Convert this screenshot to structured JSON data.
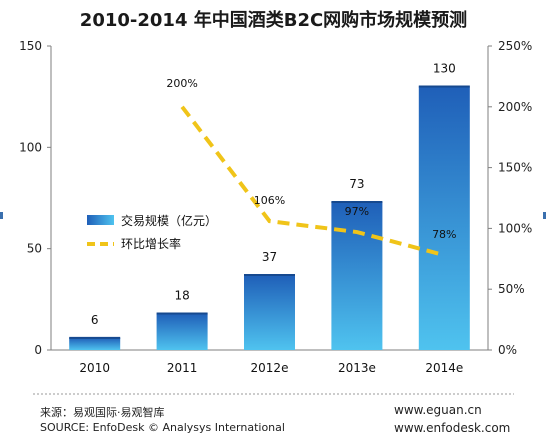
{
  "chart_data": {
    "type": "bar",
    "title": "2010-2014 年中国酒类B2C网购市场规模预测",
    "categories": [
      "2010",
      "2011",
      "2012e",
      "2013e",
      "2014e"
    ],
    "series": [
      {
        "name": "交易规模（亿元）",
        "type": "bar",
        "axis": "left",
        "values": [
          6,
          18,
          37,
          73,
          130
        ]
      },
      {
        "name": "环比增长率",
        "type": "line",
        "axis": "right",
        "values": [
          null,
          200,
          106,
          97,
          78
        ]
      }
    ],
    "value_labels": [
      "6",
      "18",
      "37",
      "73",
      "130"
    ],
    "rate_labels": [
      "",
      "200%",
      "106%",
      "97%",
      "78%"
    ],
    "ylim_left": [
      0,
      150
    ],
    "yticks_left": [
      "0",
      "50",
      "100",
      "150"
    ],
    "ylim_right": [
      0,
      250
    ],
    "yticks_right": [
      "0%",
      "50%",
      "100%",
      "150%",
      "200%",
      "250%"
    ],
    "grid": false,
    "legend_position": "center-left",
    "colors": {
      "bar_top": "#1f5fb8",
      "bar_bottom": "#4fc3ef",
      "line": "#f0c419"
    }
  },
  "footer": {
    "source_cn": "来源：易观国际·易观智库",
    "source_en": "SOURCE: EnfoDesk © Analysys International",
    "url1": "www.eguan.cn",
    "url2": "www.enfodesk.com"
  }
}
